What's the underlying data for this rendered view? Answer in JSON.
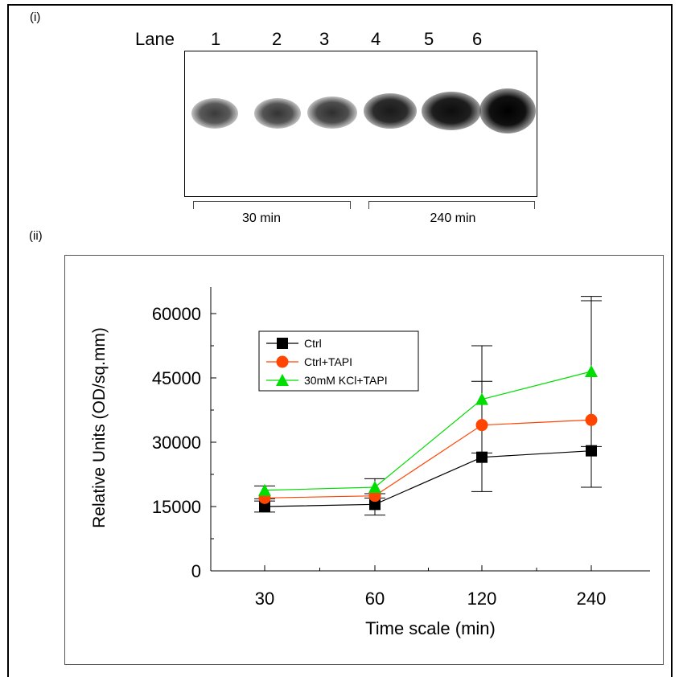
{
  "panel_i_label": "(i)",
  "panel_ii_label": "(ii)",
  "blot": {
    "lane_label": "Lane",
    "lanes": [
      "1",
      "2",
      "3",
      "4",
      "5",
      "6"
    ],
    "groups": [
      "30 min",
      "240 min"
    ]
  },
  "chart_data": {
    "type": "line",
    "xlabel": "Time scale (min)",
    "ylabel": "Relative Units (OD/sq.mm)",
    "categories": [
      "30",
      "60",
      "120",
      "240"
    ],
    "yticks": [
      "0",
      "15000",
      "30000",
      "45000",
      "60000"
    ],
    "ylim": [
      0,
      65000
    ],
    "legend_position": "upper-left",
    "series": [
      {
        "name": "Ctrl",
        "values": [
          15000,
          15500,
          26500,
          28000
        ],
        "color": "#000000",
        "marker": "square",
        "error_low": [
          13700,
          13000,
          18500,
          19500
        ],
        "error_high": [
          16300,
          18000,
          44200,
          64000
        ]
      },
      {
        "name": "Ctrl+TAPI",
        "values": [
          17000,
          17500,
          34000,
          35200
        ],
        "color": "#ff4500",
        "marker": "circle"
      },
      {
        "name": "30mM KCl+TAPI",
        "values": [
          18800,
          19500,
          40000,
          46500
        ],
        "color": "#00dd00",
        "marker": "triangle",
        "error_low": [
          16800,
          17000,
          27500,
          29000
        ],
        "error_high": [
          19800,
          21500,
          52500,
          63000
        ]
      }
    ]
  }
}
